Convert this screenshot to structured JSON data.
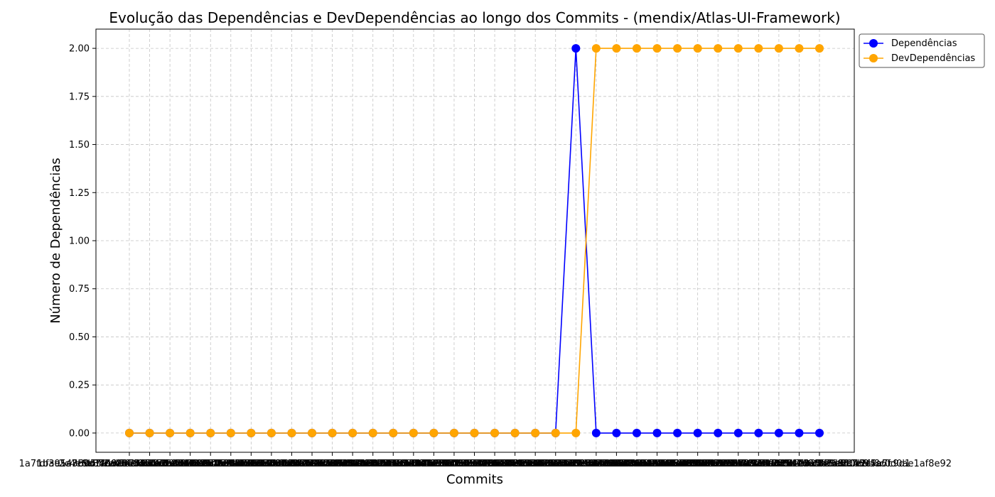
{
  "chart_data": {
    "type": "line",
    "title": "Evolução das Dependências e DevDependências ao longo dos Commits - (mendix/Atlas-UI-Framework)",
    "xlabel": "Commits",
    "ylabel": "Número de Dependências",
    "ylim": [
      -0.1,
      2.1
    ],
    "yticks": [
      "0.00",
      "0.25",
      "0.50",
      "0.75",
      "1.00",
      "1.25",
      "1.50",
      "1.75",
      "2.00"
    ],
    "grid": true,
    "legend_position": "top-right-outside",
    "x": [
      "1a7fdfa9143b0c7a1d9e2f4b6c8a0e1d3f5b7c91",
      "1b3e5a7c9d1f2a4b6c8e0a2b4d6f8a0c2e4a6b8d",
      "2c4e6a8b0d2f4a6c8e0b2d4f6a8c0e2b4d6f8a0c",
      "3d5f7b9c1e3a5b7d9f1c3e5a7b9d1f3c5e7a9b1d",
      "4e6a8c0d2f4b6d8a0c2e4b6d8f0a2c4e6b8d0f2a",
      "5f7b9d1e3a5c7e9b1d3f5c7e9a1b3d5f7c9e1a3b",
      "6a8c0e2f4b6d8f0a2c4e6b8d0f2a4c6e8b0d2f4c",
      "7b9d1f3a5c7e9a1b3d5f7c9e1a3b5d7f9c1e3a5d",
      "8c0e2a4b6d8f0b2c4e6a8d0f2b4c6e8a0d2f4b6e",
      "9d1f3b5c7e9a1c3d5f7b9e1a3c5d7f9b1e3a5c7f",
      "a0e2c4d6f8b0d2e4a6c8f0b2d4e6a8c0f2b4d6e8",
      "b1f3d5e7a9c1e3f5b7d9a1c3e5f7b9d1a3c5e7f9",
      "c2a4e6f8b0d2f4a6c8e0b2d4f6a8c0e2b4d6f8a0",
      "d3b5f7a9c1e3a5b7d9f1c3e5a7b9d1f3c5e7a9b1",
      "e4c6a8b0d2f4b6c8e0a2d4f6b8c0e2a4d6f8b0c2",
      "f5d7b9c1e3a5c7d9f1b3e5a7c9d1f3b5e7a9c1d3",
      "06e8c0d2f4b6d8e0a2c4f6b8d0e2a4c6f8b0d2e4",
      "17f9d1e3a5c7e9f1b3d5a7c9e1f3b5d7a9c1e3f5",
      "28a0e2f4b6d8f0a2c4e6b8d0f2a4c6e8b0d2f4a6",
      "39b1f3a5c7e9a1b3d5f7c9e1a3b5d7f9c1e3a5b7",
      "4ac2a4b6d8f0b2c4e6a8d0f2b4c6e8a0d2f4b6c8",
      "5bd3b5c7e9a1c3d5f7b9e1a3c5d7f9b1e3a5c7d9",
      "6ce4c6d8f0b2d4e6a8c0f2b4d6e8a0c2f4b6d8e0",
      "7df5d7e9a1c3e5f7b9d1a3c5e7f9b1d3a5c7e9f1",
      "8e06e8f0b2d4f6a8c0e2b4d6f8a0c2e4b6d8f0a2",
      "9f17f9a1c3e5a7b9d1f3c5e7a9b1d3f5c7e9a1b3",
      "a028a0b2d4f6b8c0e2a4d6f8b0c2e4a6d8f0b2c4",
      "b139b1c3e5a7c9d1f3b5e7a9c1d3f5b7e9a1c3d5",
      "c24ac2d4f6b8d0e2a4c6f8b0d2e4a6c8f0b2d4e6",
      "d35bd3e5a7c9e1f3b5d7a9c1e3f5b7d9a1c3e5f7",
      "e46ce4f6b8d0f2a4c6e8b0d2f4a6c8e0b2d4f6a8",
      "f57df5a7c9e1a3b5d7f9c1e3a5b7d9f1c3e5a7b9",
      "068e06b8d0f2b4c6e8a0d2f4b6c8e0a2d4f6b8c0",
      "179f17c9e1a3c5d7f9b1e3a5c7d9f1b3e5a7c9d1",
      "b5c3d7e9f1a2b4c6d8e0f2a4b6c8d0e2f4a6fd0ae1af8e92"
    ],
    "series": [
      {
        "name": "Dependências",
        "color": "#0000ff",
        "values": [
          0,
          0,
          0,
          0,
          0,
          0,
          0,
          0,
          0,
          0,
          0,
          0,
          0,
          0,
          0,
          0,
          0,
          0,
          0,
          0,
          0,
          0,
          2,
          0,
          0,
          0,
          0,
          0,
          0,
          0,
          0,
          0,
          0,
          0,
          0
        ]
      },
      {
        "name": "DevDependências",
        "color": "#ffa500",
        "values": [
          0,
          0,
          0,
          0,
          0,
          0,
          0,
          0,
          0,
          0,
          0,
          0,
          0,
          0,
          0,
          0,
          0,
          0,
          0,
          0,
          0,
          0,
          0,
          2,
          2,
          2,
          2,
          2,
          2,
          2,
          2,
          2,
          2,
          2,
          2
        ]
      }
    ]
  }
}
